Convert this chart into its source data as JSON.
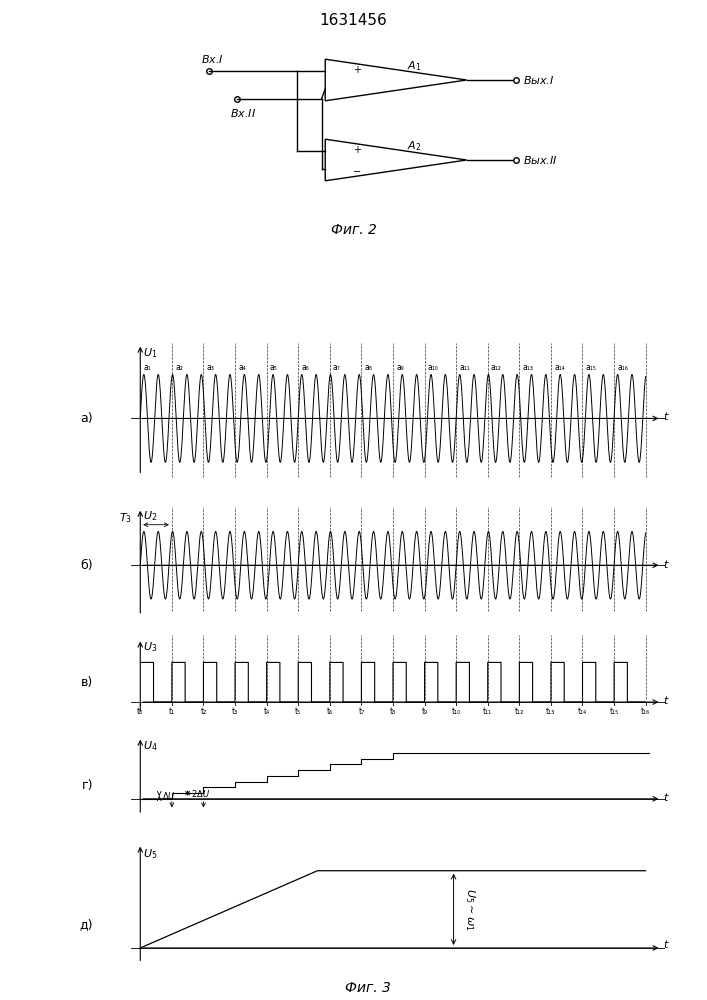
{
  "title": "1631456",
  "fig2_caption": "Фиг. 2",
  "fig3_caption": "Фиг. 3",
  "bg_color": "#ffffff",
  "line_color": "#000000",
  "panel_a_label": "а)",
  "panel_b_label": "б)",
  "panel_v_label": "в)",
  "panel_g_label": "г)",
  "panel_d_label": "д)",
  "t_labels": [
    "t₀",
    "t₁",
    "t₂",
    "t₃",
    "t₄",
    "t₅",
    "t₆",
    "t₇",
    "t₈",
    "t₉",
    "t₁₀",
    "t₁₁",
    "t₁₂",
    "t₁₃",
    "t₁₄",
    "t₁₅",
    "t₁₆"
  ],
  "a_labels": [
    "a₁",
    "a₂",
    "a₃",
    "a₄",
    "a₅",
    "a₆",
    "a₇",
    "a₈",
    "a₉",
    "a₁₀",
    "a₁₁",
    "a₁₂",
    "a₁₃",
    "a₁₄",
    "a₁₅",
    "a₁₆"
  ]
}
